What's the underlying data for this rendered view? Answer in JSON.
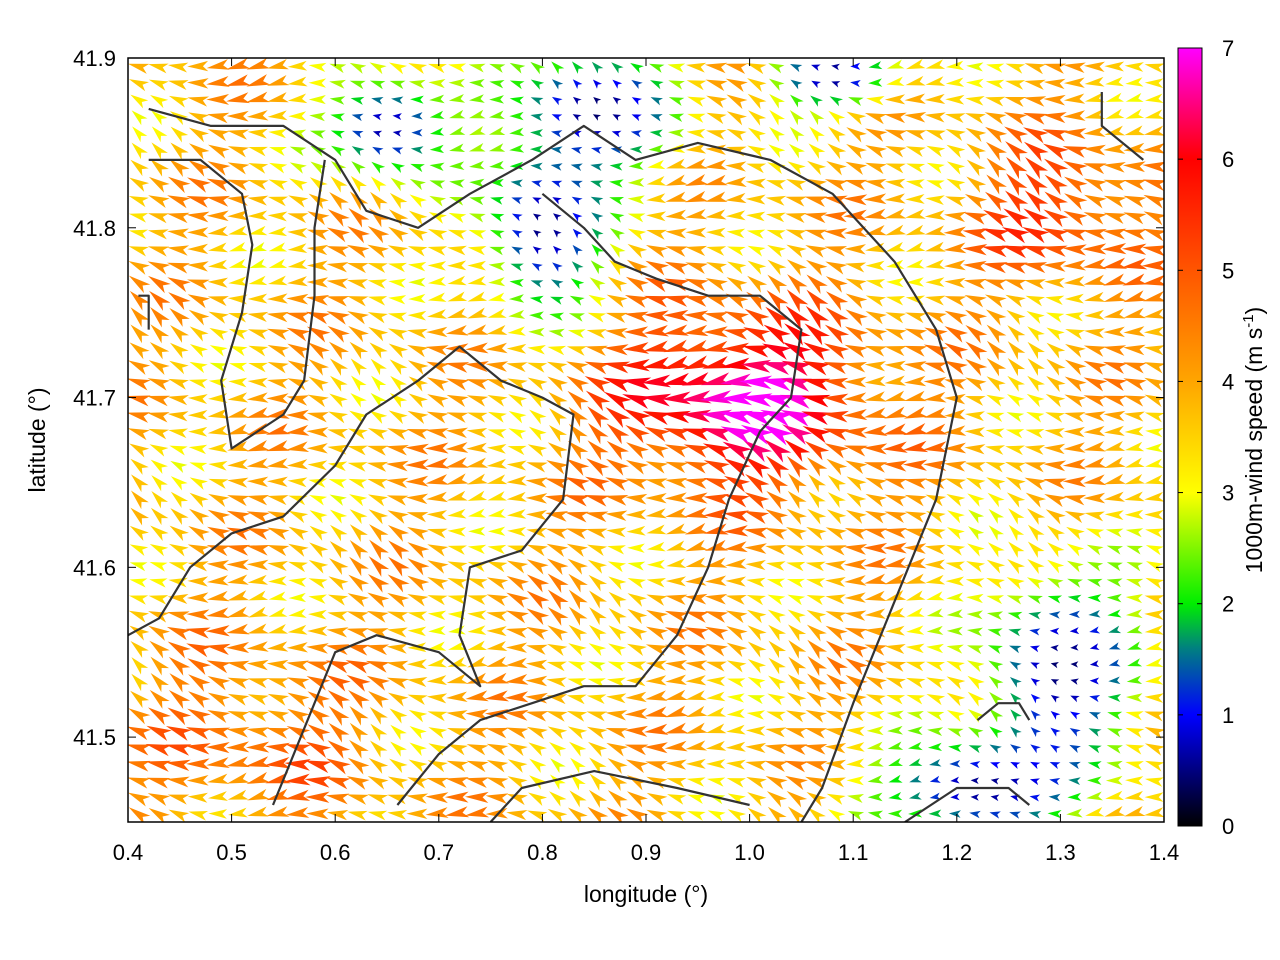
{
  "chart_data": {
    "type": "vector-field",
    "xlabel": "longitude (°)",
    "ylabel": "latitude (°)",
    "colorbar_label": "1000m-wind speed (m s",
    "colorbar_label_sup": "-1",
    "colorbar_label_end": ")",
    "xlim": [
      0.4,
      1.4
    ],
    "ylim": [
      41.45,
      41.9
    ],
    "xticks": [
      0.4,
      0.5,
      0.6,
      0.7,
      0.8,
      0.9,
      1.0,
      1.1,
      1.2,
      1.3,
      1.4
    ],
    "xtick_labels": [
      "0.4",
      "0.5",
      "0.6",
      "0.7",
      "0.8",
      "0.9",
      "1.0",
      "1.1",
      "1.2",
      "1.3",
      "1.4"
    ],
    "yticks": [
      41.5,
      41.6,
      41.7,
      41.8,
      41.9
    ],
    "ytick_labels": [
      "41.5",
      "41.6",
      "41.7",
      "41.8",
      "41.9"
    ],
    "cb_range": [
      0,
      7
    ],
    "cb_ticks": [
      0,
      1,
      2,
      3,
      4,
      5,
      6,
      7
    ],
    "cb_tick_labels": [
      "0",
      "1",
      "2",
      "3",
      "4",
      "5",
      "6",
      "7"
    ],
    "colormap": [
      {
        "v": 0,
        "c": "#000000"
      },
      {
        "v": 1,
        "c": "#0000ff"
      },
      {
        "v": 1.6,
        "c": "#008080"
      },
      {
        "v": 2,
        "c": "#00ee00"
      },
      {
        "v": 3,
        "c": "#ffff00"
      },
      {
        "v": 4,
        "c": "#ffa500"
      },
      {
        "v": 5,
        "c": "#ff5500"
      },
      {
        "v": 6,
        "c": "#ff0000"
      },
      {
        "v": 7,
        "c": "#ff00ff"
      }
    ],
    "grid": false,
    "speed_centers": [
      {
        "lon": 0.99,
        "lat": 41.7,
        "amp": 3.2,
        "rx": 0.12,
        "ry": 0.05
      },
      {
        "lon": 1.3,
        "lat": 41.81,
        "amp": 1.7,
        "rx": 0.08,
        "ry": 0.04
      },
      {
        "lon": 0.52,
        "lat": 41.5,
        "amp": 1.0,
        "rx": 0.1,
        "ry": 0.05
      }
    ],
    "calm_zones": [
      {
        "lon": 0.8,
        "lat": 41.8,
        "rx": 0.06,
        "ry": 0.05
      },
      {
        "lon": 0.85,
        "lat": 41.87,
        "rx": 0.08,
        "ry": 0.04
      },
      {
        "lon": 0.65,
        "lat": 41.86,
        "rx": 0.06,
        "ry": 0.03
      },
      {
        "lon": 1.3,
        "lat": 41.54,
        "rx": 0.08,
        "ry": 0.06
      },
      {
        "lon": 1.08,
        "lat": 41.89,
        "rx": 0.06,
        "ry": 0.02
      },
      {
        "lon": 1.22,
        "lat": 41.47,
        "rx": 0.1,
        "ry": 0.03
      }
    ],
    "base_speed": 3.8,
    "coastline": [
      [
        [
          0.42,
          41.87
        ],
        [
          0.48,
          41.86
        ],
        [
          0.55,
          41.86
        ],
        [
          0.6,
          41.84
        ],
        [
          0.63,
          41.81
        ],
        [
          0.68,
          41.8
        ],
        [
          0.73,
          41.82
        ],
        [
          0.79,
          41.84
        ],
        [
          0.84,
          41.86
        ],
        [
          0.89,
          41.84
        ],
        [
          0.95,
          41.85
        ],
        [
          1.02,
          41.84
        ],
        [
          1.08,
          41.82
        ],
        [
          1.14,
          41.78
        ],
        [
          1.18,
          41.74
        ],
        [
          1.2,
          41.7
        ],
        [
          1.18,
          41.64
        ],
        [
          1.14,
          41.58
        ],
        [
          1.1,
          41.52
        ],
        [
          1.07,
          41.47
        ],
        [
          1.05,
          41.45
        ]
      ],
      [
        [
          0.42,
          41.84
        ],
        [
          0.47,
          41.84
        ],
        [
          0.51,
          41.82
        ],
        [
          0.52,
          41.79
        ],
        [
          0.51,
          41.75
        ],
        [
          0.49,
          41.71
        ],
        [
          0.5,
          41.67
        ],
        [
          0.55,
          41.69
        ],
        [
          0.57,
          41.71
        ],
        [
          0.58,
          41.76
        ],
        [
          0.58,
          41.8
        ],
        [
          0.59,
          41.84
        ]
      ],
      [
        [
          0.4,
          41.56
        ],
        [
          0.43,
          41.57
        ],
        [
          0.46,
          41.6
        ],
        [
          0.5,
          41.62
        ],
        [
          0.55,
          41.63
        ],
        [
          0.6,
          41.66
        ],
        [
          0.63,
          41.69
        ],
        [
          0.68,
          41.71
        ],
        [
          0.72,
          41.73
        ],
        [
          0.76,
          41.71
        ],
        [
          0.8,
          41.7
        ],
        [
          0.83,
          41.69
        ],
        [
          0.82,
          41.64
        ],
        [
          0.78,
          41.61
        ],
        [
          0.73,
          41.6
        ],
        [
          0.72,
          41.56
        ],
        [
          0.74,
          41.53
        ],
        [
          0.7,
          41.55
        ],
        [
          0.64,
          41.56
        ],
        [
          0.6,
          41.55
        ],
        [
          0.58,
          41.52
        ],
        [
          0.56,
          41.49
        ],
        [
          0.54,
          41.46
        ]
      ],
      [
        [
          0.66,
          41.46
        ],
        [
          0.7,
          41.49
        ],
        [
          0.74,
          41.51
        ],
        [
          0.79,
          41.52
        ],
        [
          0.84,
          41.53
        ],
        [
          0.89,
          41.53
        ],
        [
          0.93,
          41.56
        ],
        [
          0.96,
          41.6
        ],
        [
          0.98,
          41.64
        ],
        [
          1.01,
          41.68
        ],
        [
          1.04,
          41.7
        ],
        [
          1.05,
          41.74
        ],
        [
          1.01,
          41.76
        ],
        [
          0.96,
          41.76
        ],
        [
          0.91,
          41.77
        ],
        [
          0.87,
          41.78
        ],
        [
          0.84,
          41.8
        ],
        [
          0.8,
          41.82
        ]
      ],
      [
        [
          0.75,
          41.45
        ],
        [
          0.78,
          41.47
        ],
        [
          0.85,
          41.48
        ],
        [
          0.93,
          41.47
        ],
        [
          1.0,
          41.46
        ]
      ],
      [
        [
          1.15,
          41.45
        ],
        [
          1.2,
          41.47
        ],
        [
          1.25,
          41.47
        ],
        [
          1.27,
          41.46
        ]
      ],
      [
        [
          1.22,
          41.51
        ],
        [
          1.24,
          41.52
        ],
        [
          1.26,
          41.52
        ],
        [
          1.27,
          41.51
        ]
      ],
      [
        [
          1.34,
          41.88
        ],
        [
          1.34,
          41.86
        ],
        [
          1.38,
          41.84
        ]
      ],
      [
        [
          0.41,
          41.76
        ],
        [
          0.42,
          41.76
        ],
        [
          0.42,
          41.74
        ]
      ]
    ]
  }
}
